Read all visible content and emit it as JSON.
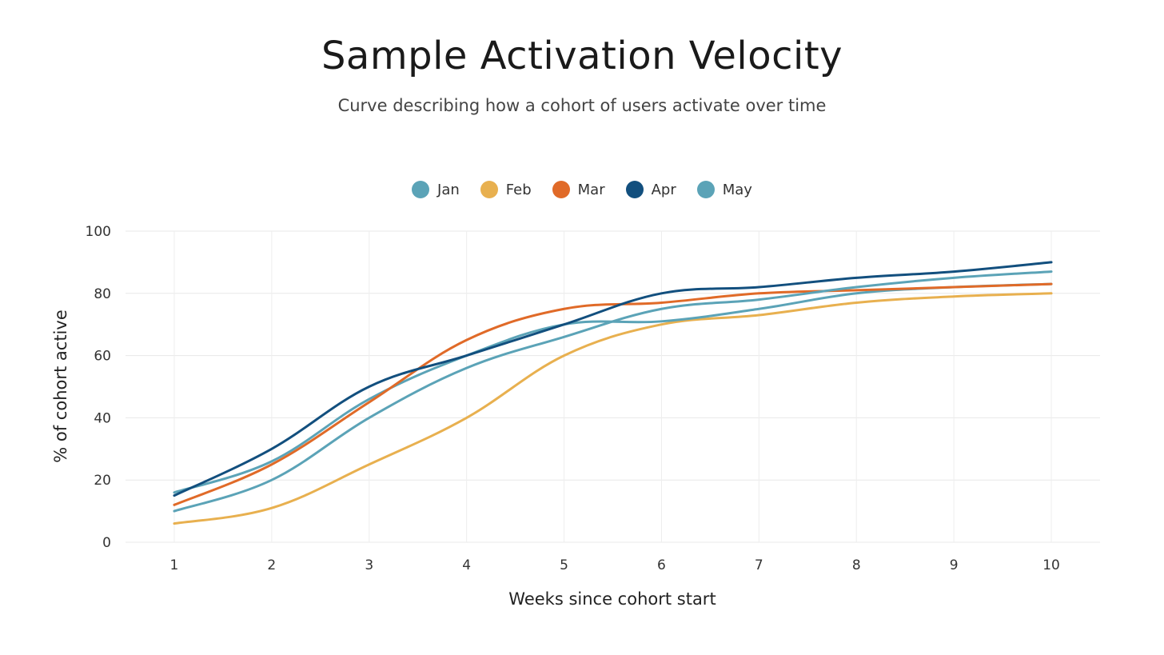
{
  "chart_data": {
    "type": "line",
    "title": "Sample Activation Velocity",
    "subtitle": "Curve describing how a cohort of users activate over time",
    "xlabel": "Weeks since cohort start",
    "ylabel": "% of cohort active",
    "x": [
      1,
      2,
      3,
      4,
      5,
      6,
      7,
      8,
      9,
      10
    ],
    "xlim": [
      0.5,
      10.5
    ],
    "ylim": [
      0,
      100
    ],
    "yticks": [
      0,
      20,
      40,
      60,
      80,
      100
    ],
    "grid": true,
    "legend_position": "top-center",
    "series": [
      {
        "name": "Jan",
        "color": "#5ba3b7",
        "values": [
          16,
          26,
          46,
          60,
          70,
          71,
          75,
          80,
          82,
          83
        ]
      },
      {
        "name": "Feb",
        "color": "#e8b04f",
        "values": [
          6,
          11,
          25,
          40,
          60,
          70,
          73,
          77,
          79,
          80
        ]
      },
      {
        "name": "Mar",
        "color": "#e06a28",
        "values": [
          12,
          25,
          45,
          65,
          75,
          77,
          80,
          81,
          82,
          83
        ]
      },
      {
        "name": "Apr",
        "color": "#124f7e",
        "values": [
          15,
          30,
          50,
          60,
          70,
          80,
          82,
          85,
          87,
          90
        ]
      },
      {
        "name": "May",
        "color": "#5ba3b7",
        "values": [
          10,
          20,
          40,
          56,
          66,
          75,
          78,
          82,
          85,
          87
        ]
      }
    ]
  }
}
